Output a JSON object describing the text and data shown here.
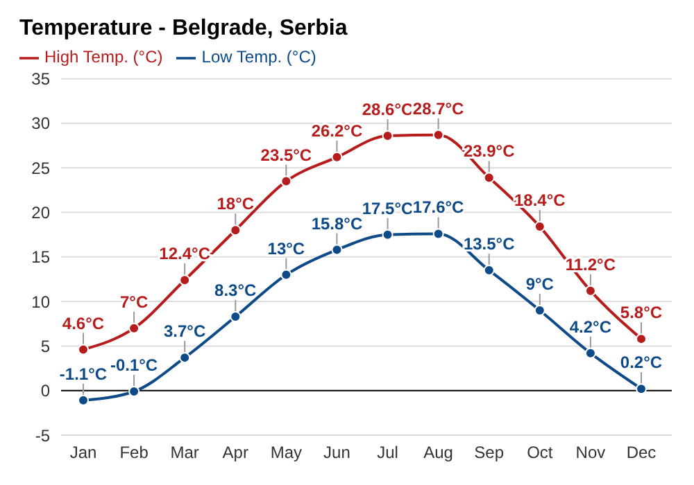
{
  "chart_data": {
    "type": "line",
    "title": "Temperature - Belgrade, Serbia",
    "categories": [
      "Jan",
      "Feb",
      "Mar",
      "Apr",
      "May",
      "Jun",
      "Jul",
      "Aug",
      "Sep",
      "Oct",
      "Nov",
      "Dec"
    ],
    "series": [
      {
        "name": "High Temp. (°C)",
        "color": "#b71c1c",
        "values": [
          4.6,
          7,
          12.4,
          18,
          23.5,
          26.2,
          28.6,
          28.7,
          23.9,
          18.4,
          11.2,
          5.8
        ],
        "value_labels": [
          "4.6°C",
          "7°C",
          "12.4°C",
          "18°C",
          "23.5°C",
          "26.2°C",
          "28.6°C",
          "28.7°C",
          "23.9°C",
          "18.4°C",
          "11.2°C",
          "5.8°C"
        ]
      },
      {
        "name": "Low Temp. (°C)",
        "color": "#0d4a87",
        "values": [
          -1.1,
          -0.1,
          3.7,
          8.3,
          13,
          15.8,
          17.5,
          17.6,
          13.5,
          9,
          4.2,
          0.2
        ],
        "value_labels": [
          "-1.1°C",
          "-0.1°C",
          "3.7°C",
          "8.3°C",
          "13°C",
          "15.8°C",
          "17.5°C",
          "17.6°C",
          "13.5°C",
          "9°C",
          "4.2°C",
          "0.2°C"
        ]
      }
    ],
    "ylim": [
      -5,
      35
    ],
    "yticks": [
      -5,
      0,
      5,
      10,
      15,
      20,
      25,
      30,
      35
    ],
    "grid": "y",
    "legend": "top left",
    "marker": "circle",
    "line_style": "solid",
    "ref_lines": [
      {
        "axis": "y",
        "value": 0,
        "color": "#000000"
      }
    ]
  }
}
